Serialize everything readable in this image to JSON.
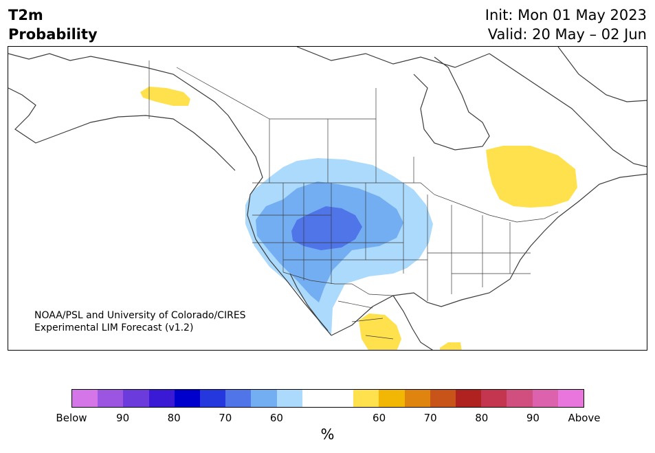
{
  "title": {
    "line1": "T2m",
    "line2": "Probability"
  },
  "dates": {
    "init": "Init: Mon 01 May 2023",
    "valid": "Valid: 20 May – 02 Jun"
  },
  "credit": {
    "line1": "NOAA/PSL and University of Colorado/CIRES",
    "line2": "Experimental LIM Forecast (v1.2)"
  },
  "colorbar": {
    "colors": [
      "#d475e8",
      "#9b55e0",
      "#6b3bdb",
      "#3a1ad4",
      "#0000cc",
      "#2538dd",
      "#4f75e8",
      "#74aef2",
      "#acdafc",
      "#ffffff",
      "#ffffff",
      "#ffe14d",
      "#f2b705",
      "#df850f",
      "#c9541a",
      "#b0221f",
      "#c4354f",
      "#d14f7e",
      "#dc62ad",
      "#e876dd"
    ],
    "tick_labels": [
      "Below",
      "90",
      "80",
      "70",
      "60",
      "60",
      "70",
      "80",
      "90",
      "Above"
    ],
    "unit": "%"
  },
  "colors": {
    "below_60": "#acdafc",
    "below_70": "#74aef2",
    "below_80": "#4f75e8",
    "above_60": "#ffe14d",
    "land_outline": "#3a3a3a"
  }
}
